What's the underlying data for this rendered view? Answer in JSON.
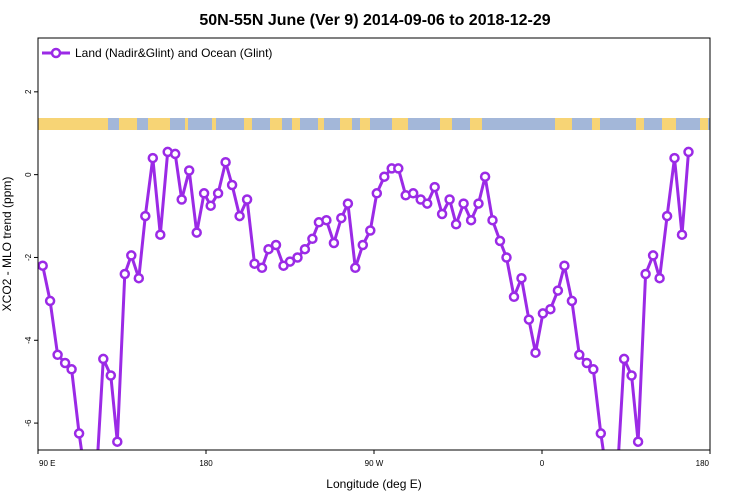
{
  "chart_data": {
    "type": "line",
    "title": "50N-55N June (Ver 9)   2014-09-06 to 2018-12-29",
    "xlabel": "Longitude (deg E)",
    "ylabel": "XCO2 - MLO trend (ppm)",
    "xlim": [
      90,
      450
    ],
    "ylim": [
      -6.65,
      3.3
    ],
    "x_ticks": [
      {
        "value": 90,
        "label": "90 E"
      },
      {
        "value": 180,
        "label": "180"
      },
      {
        "value": 270,
        "label": "90 W"
      },
      {
        "value": 360,
        "label": "0"
      },
      {
        "value": 450,
        "label": "180"
      }
    ],
    "y_ticks": [
      {
        "value": 2,
        "label": "2"
      },
      {
        "value": 0,
        "label": "0"
      },
      {
        "value": -2,
        "label": "-2"
      },
      {
        "value": -4,
        "label": "-4"
      },
      {
        "value": -6,
        "label": "-6"
      }
    ],
    "legend": {
      "position": "top-left"
    },
    "series": [
      {
        "name": "Land (Nadir&Glint) and Ocean (Glint)",
        "color": "#9b2ae6",
        "points": [
          [
            92.5,
            -2.2
          ],
          [
            96.5,
            -3.05
          ],
          [
            100.5,
            -4.35
          ],
          [
            104.5,
            -4.55
          ],
          [
            108,
            -4.7
          ],
          [
            112,
            -6.25
          ],
          [
            116,
            -7.5
          ],
          [
            121,
            -7.5
          ],
          [
            125,
            -4.45
          ],
          [
            129,
            -4.85
          ],
          [
            132.5,
            -6.45
          ],
          [
            136.5,
            -2.4
          ],
          [
            140,
            -1.95
          ],
          [
            144,
            -2.5
          ],
          [
            147.5,
            -1.0
          ],
          [
            151.5,
            0.4
          ],
          [
            155.5,
            -1.45
          ],
          [
            159.5,
            0.55
          ],
          [
            163.5,
            0.5
          ],
          [
            167,
            -0.6
          ],
          [
            171,
            0.1
          ],
          [
            175,
            -1.4
          ],
          [
            179,
            -0.45
          ],
          [
            182.5,
            -0.75
          ],
          [
            186.5,
            -0.45
          ],
          [
            190.5,
            0.3
          ],
          [
            194,
            -0.25
          ],
          [
            198,
            -1.0
          ],
          [
            202,
            -0.6
          ],
          [
            206,
            -2.15
          ],
          [
            210,
            -2.25
          ],
          [
            213.5,
            -1.8
          ],
          [
            217.5,
            -1.7
          ],
          [
            221.5,
            -2.2
          ],
          [
            225,
            -2.1
          ],
          [
            229,
            -2.0
          ],
          [
            233,
            -1.8
          ],
          [
            237,
            -1.55
          ],
          [
            240.5,
            -1.15
          ],
          [
            244.5,
            -1.1
          ],
          [
            248.5,
            -1.65
          ],
          [
            252.5,
            -1.05
          ],
          [
            256,
            -0.7
          ],
          [
            260,
            -2.25
          ],
          [
            264,
            -1.7
          ],
          [
            268,
            -1.35
          ],
          [
            271.5,
            -0.45
          ],
          [
            275.5,
            -0.05
          ],
          [
            279.5,
            0.15
          ],
          [
            283,
            0.15
          ],
          [
            287,
            -0.5
          ],
          [
            291,
            -0.45
          ],
          [
            295,
            -0.6
          ],
          [
            298.5,
            -0.7
          ],
          [
            302.5,
            -0.3
          ],
          [
            306.5,
            -0.95
          ],
          [
            310.5,
            -0.6
          ],
          [
            314,
            -1.2
          ],
          [
            318,
            -0.7
          ],
          [
            322,
            -1.1
          ],
          [
            326,
            -0.7
          ],
          [
            329.5,
            -0.05
          ],
          [
            333.5,
            -1.1
          ],
          [
            337.5,
            -1.6
          ],
          [
            341,
            -2.0
          ],
          [
            345,
            -2.95
          ],
          [
            349,
            -2.5
          ],
          [
            353,
            -3.5
          ],
          [
            356.5,
            -4.3
          ],
          [
            360.5,
            -3.35
          ],
          [
            364.5,
            -3.25
          ],
          [
            368.5,
            -2.8
          ],
          [
            372,
            -2.2
          ],
          [
            376,
            -3.05
          ],
          [
            380,
            -4.35
          ],
          [
            384,
            -4.55
          ],
          [
            387.5,
            -4.7
          ],
          [
            391.5,
            -6.25
          ],
          [
            395.5,
            -7.5
          ],
          [
            400,
            -7.5
          ],
          [
            404,
            -4.45
          ],
          [
            408,
            -4.85
          ],
          [
            411.5,
            -6.45
          ],
          [
            415.5,
            -2.4
          ],
          [
            419.5,
            -1.95
          ],
          [
            423,
            -2.5
          ],
          [
            427,
            -1.0
          ],
          [
            431,
            0.4
          ],
          [
            435,
            -1.45
          ],
          [
            438.5,
            0.55
          ]
        ]
      }
    ]
  }
}
